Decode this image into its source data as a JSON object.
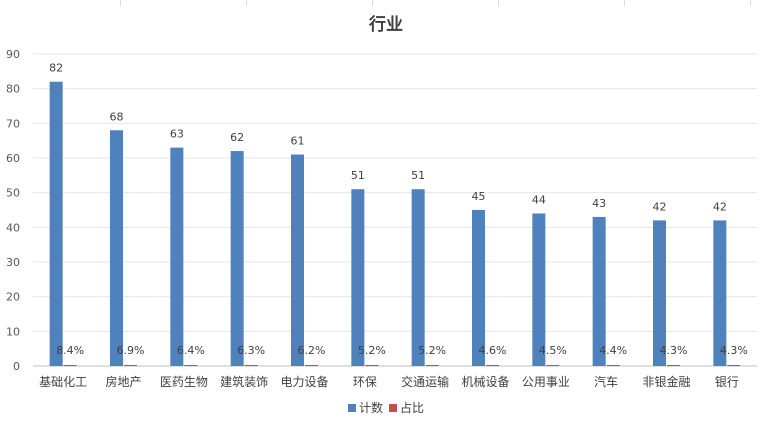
{
  "chart_data": {
    "type": "bar",
    "title": "行业",
    "xlabel": "",
    "ylabel": "",
    "ylim": [
      0,
      90
    ],
    "yticks": [
      0,
      10,
      20,
      30,
      40,
      50,
      60,
      70,
      80,
      90
    ],
    "grid": true,
    "legend_position": "bottom",
    "categories": [
      "基础化工",
      "房地产",
      "医药生物",
      "建筑装饰",
      "电力设备",
      "环保",
      "交通运输",
      "机械设备",
      "公用事业",
      "汽车",
      "非银金融",
      "银行"
    ],
    "series": [
      {
        "name": "计数",
        "color": "#4f81bd",
        "values": [
          82,
          68,
          63,
          62,
          61,
          51,
          51,
          45,
          44,
          43,
          42,
          42
        ],
        "labels": [
          "82",
          "68",
          "63",
          "62",
          "61",
          "51",
          "51",
          "45",
          "44",
          "43",
          "42",
          "42"
        ]
      },
      {
        "name": "占比",
        "color": "#c0504d",
        "values": [
          0.084,
          0.069,
          0.064,
          0.063,
          0.062,
          0.052,
          0.052,
          0.046,
          0.045,
          0.044,
          0.043,
          0.043
        ],
        "labels": [
          "8.4%",
          "6.9%",
          "6.4%",
          "6.3%",
          "6.2%",
          "5.2%",
          "5.2%",
          "4.6%",
          "4.5%",
          "4.4%",
          "4.3%",
          "4.3%"
        ]
      }
    ]
  }
}
